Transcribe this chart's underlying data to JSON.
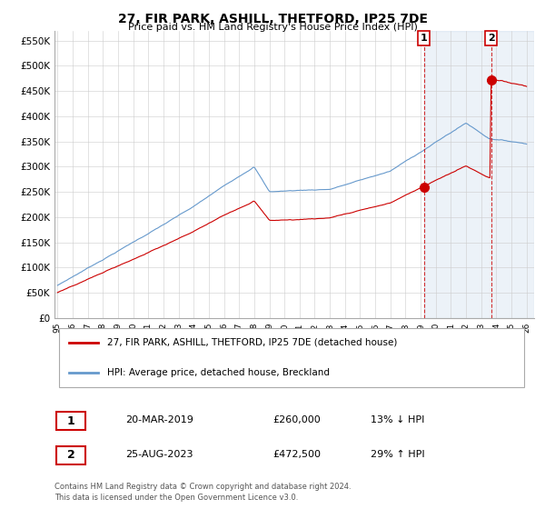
{
  "title": "27, FIR PARK, ASHILL, THETFORD, IP25 7DE",
  "subtitle": "Price paid vs. HM Land Registry's House Price Index (HPI)",
  "ylabel_ticks": [
    "£0",
    "£50K",
    "£100K",
    "£150K",
    "£200K",
    "£250K",
    "£300K",
    "£350K",
    "£400K",
    "£450K",
    "£500K",
    "£550K"
  ],
  "ytick_values": [
    0,
    50000,
    100000,
    150000,
    200000,
    250000,
    300000,
    350000,
    400000,
    450000,
    500000,
    550000
  ],
  "ylim": [
    0,
    570000
  ],
  "legend_line1": "27, FIR PARK, ASHILL, THETFORD, IP25 7DE (detached house)",
  "legend_line2": "HPI: Average price, detached house, Breckland",
  "sale1_date": "20-MAR-2019",
  "sale1_price": "£260,000",
  "sale1_info": "13% ↓ HPI",
  "sale2_date": "25-AUG-2023",
  "sale2_price": "£472,500",
  "sale2_info": "29% ↑ HPI",
  "footer": "Contains HM Land Registry data © Crown copyright and database right 2024.\nThis data is licensed under the Open Government Licence v3.0.",
  "line_color_sale": "#cc0000",
  "line_color_hpi": "#6699cc",
  "fill_color_hpi": "#ddeeff",
  "background_color": "#ffffff",
  "grid_color": "#cccccc",
  "sale1_year": 2019.22,
  "sale1_val": 260000,
  "sale2_year": 2023.65,
  "sale2_val": 472500
}
